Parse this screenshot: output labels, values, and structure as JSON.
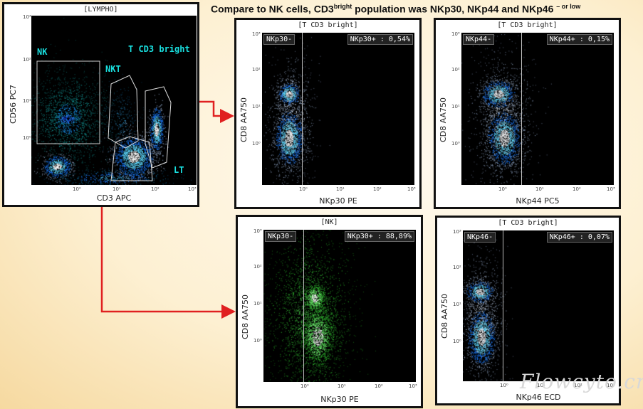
{
  "title": {
    "main": "Compare to NK cells, CD3",
    "sup1": "bright",
    "rest": " population was NKp30, NKp44 and NKp46 ",
    "sup2": "– or low"
  },
  "colors": {
    "cyan": "#19e0e0",
    "arrow": "#e02020",
    "dots_white": "#e0e8f0",
    "dots_blue": "#1c88ff",
    "dots_green": "#3cdc3c"
  },
  "watermark": "Flowcyto.cn",
  "chart_data": [
    {
      "type": "scatter",
      "panel_id": "lympho",
      "title": "[LYMPHO]",
      "xlabel": "CD3 APC",
      "ylabel": "CD56 PC7",
      "x_scale": "log",
      "y_scale": "log",
      "ticks": {
        "x": [
          "10⁰",
          "10¹",
          "10²",
          "10³"
        ],
        "y": [
          "10³",
          "10²",
          "10¹",
          "10⁰"
        ]
      },
      "gates": [
        {
          "name": "NK"
        },
        {
          "name": "NKT"
        },
        {
          "name": "T CD3 bright"
        },
        {
          "name": "LT"
        }
      ]
    },
    {
      "type": "scatter",
      "panel_id": "nkp30-tcd3",
      "title": "[T CD3 bright]",
      "xlabel": "NKp30 PE",
      "ylabel": "CD8 AA750",
      "ticks": {
        "x": [
          "10⁰",
          "10¹",
          "10²",
          "10³"
        ],
        "y": [
          "10³",
          "10²",
          "10¹",
          "10⁰"
        ]
      },
      "regions": [
        {
          "label": "NKp30-"
        },
        {
          "label": "NKp30+ : 0,54%"
        }
      ]
    },
    {
      "type": "scatter",
      "panel_id": "nkp44-tcd3",
      "title": "[T CD3 bright]",
      "xlabel": "NKp44 PC5",
      "ylabel": "CD8 AA750",
      "ticks": {
        "x": [
          "10⁰",
          "10¹",
          "10²",
          "10³"
        ],
        "y": [
          "10³",
          "10²",
          "10¹",
          "10⁰"
        ]
      },
      "regions": [
        {
          "label": "NKp44-"
        },
        {
          "label": "NKp44+ : 0,15%"
        }
      ]
    },
    {
      "type": "scatter",
      "panel_id": "nkp30-nk",
      "title": "[NK]",
      "xlabel": "NKp30 PE",
      "ylabel": "CD8 AA750",
      "ticks": {
        "x": [
          "10⁰",
          "10¹",
          "10²",
          "10³"
        ],
        "y": [
          "10³",
          "10²",
          "10¹",
          "10⁰"
        ]
      },
      "regions": [
        {
          "label": "NKp30-"
        },
        {
          "label": "NKp30+ : 88,89%"
        }
      ]
    },
    {
      "type": "scatter",
      "panel_id": "nkp46-tcd3",
      "title": "[T CD3 bright]",
      "xlabel": "NKp46 ECD",
      "ylabel": "CD8 AA750",
      "ticks": {
        "x": [
          "10⁰",
          "10¹",
          "10²",
          "10³"
        ],
        "y": [
          "10³",
          "10²",
          "10¹",
          "10⁰"
        ]
      },
      "regions": [
        {
          "label": "NKp46-"
        },
        {
          "label": "NKp46+ : 0,07%"
        }
      ]
    }
  ]
}
